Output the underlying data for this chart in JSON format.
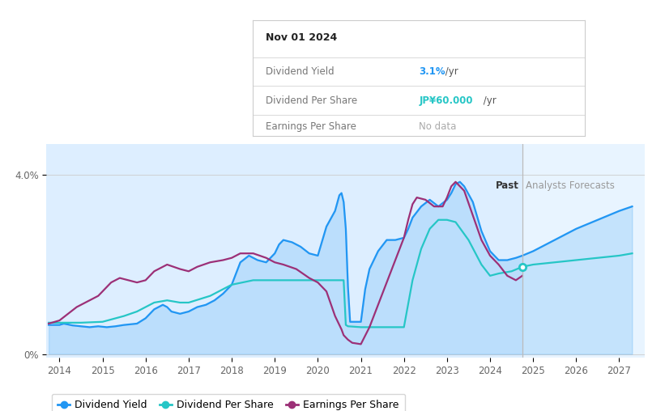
{
  "tooltip_date": "Nov 01 2024",
  "tooltip_yield": "3.1%",
  "tooltip_yield_suffix": " /yr",
  "tooltip_dps": "JP¥60.000",
  "tooltip_dps_suffix": " /yr",
  "tooltip_eps": "No data",
  "past_label": "Past",
  "forecast_label": "Analysts Forecasts",
  "forecast_start": 2024.75,
  "xlim": [
    2013.7,
    2027.6
  ],
  "ylim": [
    -0.08,
    4.7
  ],
  "chart_top": 4.0,
  "bg_color": "#ffffff",
  "chart_bg": "#ddeeff",
  "forecast_bg": "#e8f4ff",
  "grid_color": "#cccccc",
  "blue_color": "#2196f3",
  "cyan_color": "#26c6c6",
  "purple_color": "#9c3077",
  "x_ticks": [
    2014,
    2015,
    2016,
    2017,
    2018,
    2019,
    2020,
    2021,
    2022,
    2023,
    2024,
    2025,
    2026,
    2027
  ],
  "dividend_yield": {
    "x": [
      2013.75,
      2014.0,
      2014.1,
      2014.3,
      2014.5,
      2014.7,
      2014.9,
      2015.1,
      2015.3,
      2015.5,
      2015.8,
      2016.0,
      2016.2,
      2016.4,
      2016.5,
      2016.6,
      2016.8,
      2017.0,
      2017.2,
      2017.4,
      2017.6,
      2017.8,
      2018.0,
      2018.2,
      2018.4,
      2018.6,
      2018.8,
      2019.0,
      2019.1,
      2019.2,
      2019.4,
      2019.6,
      2019.8,
      2020.0,
      2020.2,
      2020.4,
      2020.5,
      2020.55,
      2020.6,
      2020.65,
      2020.7,
      2020.75,
      2021.0,
      2021.1,
      2021.2,
      2021.4,
      2021.6,
      2021.8,
      2022.0,
      2022.1,
      2022.2,
      2022.4,
      2022.6,
      2022.8,
      2023.0,
      2023.1,
      2023.2,
      2023.3,
      2023.4,
      2023.6,
      2023.8,
      2024.0,
      2024.1,
      2024.2,
      2024.4,
      2024.6,
      2024.75,
      2025.0,
      2025.5,
      2026.0,
      2026.5,
      2027.0,
      2027.3
    ],
    "y": [
      0.65,
      0.65,
      0.68,
      0.64,
      0.62,
      0.6,
      0.62,
      0.6,
      0.62,
      0.65,
      0.68,
      0.8,
      1.0,
      1.1,
      1.05,
      0.95,
      0.9,
      0.95,
      1.05,
      1.1,
      1.2,
      1.35,
      1.55,
      2.05,
      2.2,
      2.1,
      2.05,
      2.25,
      2.45,
      2.55,
      2.5,
      2.4,
      2.25,
      2.2,
      2.85,
      3.2,
      3.55,
      3.6,
      3.4,
      2.8,
      1.5,
      0.72,
      0.72,
      1.45,
      1.9,
      2.3,
      2.55,
      2.55,
      2.6,
      2.8,
      3.05,
      3.3,
      3.45,
      3.3,
      3.45,
      3.6,
      3.8,
      3.85,
      3.75,
      3.4,
      2.75,
      2.3,
      2.2,
      2.1,
      2.1,
      2.15,
      2.2,
      2.3,
      2.55,
      2.8,
      3.0,
      3.2,
      3.3
    ]
  },
  "dividend_per_share": {
    "x": [
      2013.75,
      2014.0,
      2014.5,
      2015.0,
      2015.5,
      2015.8,
      2016.0,
      2016.2,
      2016.5,
      2016.8,
      2017.0,
      2017.5,
      2018.0,
      2018.5,
      2019.0,
      2019.5,
      2020.0,
      2020.5,
      2020.55,
      2020.6,
      2020.65,
      2020.7,
      2021.0,
      2021.5,
      2022.0,
      2022.2,
      2022.4,
      2022.6,
      2022.8,
      2023.0,
      2023.2,
      2023.5,
      2023.8,
      2024.0,
      2024.2,
      2024.5,
      2024.75,
      2025.0,
      2025.5,
      2026.0,
      2026.5,
      2027.0,
      2027.3
    ],
    "y": [
      0.7,
      0.7,
      0.7,
      0.72,
      0.85,
      0.95,
      1.05,
      1.15,
      1.2,
      1.15,
      1.15,
      1.3,
      1.55,
      1.65,
      1.65,
      1.65,
      1.65,
      1.65,
      1.65,
      1.65,
      0.65,
      0.62,
      0.6,
      0.6,
      0.6,
      1.65,
      2.35,
      2.8,
      3.0,
      3.0,
      2.95,
      2.55,
      2.0,
      1.75,
      1.8,
      1.85,
      1.95,
      2.0,
      2.05,
      2.1,
      2.15,
      2.2,
      2.25
    ]
  },
  "earnings_per_share": {
    "x": [
      2013.75,
      2014.0,
      2014.2,
      2014.4,
      2014.6,
      2014.9,
      2015.0,
      2015.2,
      2015.4,
      2015.6,
      2015.8,
      2016.0,
      2016.2,
      2016.5,
      2016.8,
      2017.0,
      2017.2,
      2017.5,
      2017.8,
      2018.0,
      2018.2,
      2018.5,
      2018.8,
      2019.0,
      2019.2,
      2019.5,
      2019.8,
      2020.0,
      2020.2,
      2020.4,
      2020.55,
      2020.6,
      2020.7,
      2020.8,
      2021.0,
      2021.2,
      2021.4,
      2021.6,
      2021.8,
      2022.0,
      2022.1,
      2022.2,
      2022.3,
      2022.5,
      2022.7,
      2022.9,
      2023.0,
      2023.1,
      2023.2,
      2023.4,
      2023.6,
      2023.8,
      2024.0,
      2024.2,
      2024.4,
      2024.6,
      2024.75
    ],
    "y": [
      0.68,
      0.75,
      0.9,
      1.05,
      1.15,
      1.3,
      1.4,
      1.6,
      1.7,
      1.65,
      1.6,
      1.65,
      1.85,
      2.0,
      1.9,
      1.85,
      1.95,
      2.05,
      2.1,
      2.15,
      2.25,
      2.25,
      2.15,
      2.05,
      2.0,
      1.9,
      1.7,
      1.6,
      1.4,
      0.85,
      0.55,
      0.42,
      0.32,
      0.25,
      0.22,
      0.6,
      1.1,
      1.6,
      2.1,
      2.6,
      3.0,
      3.35,
      3.5,
      3.45,
      3.3,
      3.3,
      3.5,
      3.75,
      3.85,
      3.65,
      3.1,
      2.55,
      2.2,
      2.0,
      1.75,
      1.65,
      1.75
    ]
  },
  "legend_items": [
    {
      "label": "Dividend Yield",
      "color": "#2196f3"
    },
    {
      "label": "Dividend Per Share",
      "color": "#26c6c6"
    },
    {
      "label": "Earnings Per Share",
      "color": "#9c3077"
    }
  ]
}
